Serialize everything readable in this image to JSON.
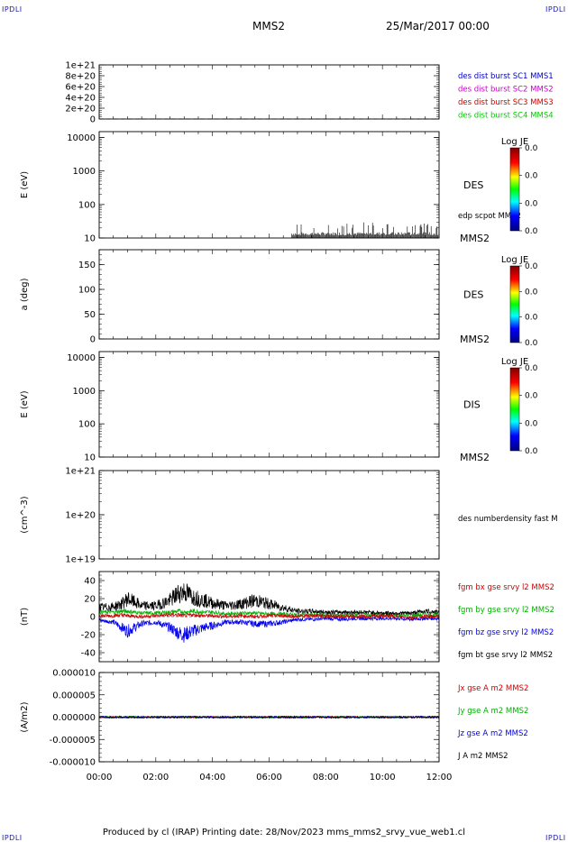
{
  "header": {
    "spacecraft": "MMS2",
    "date": "25/Mar/2017 00:00",
    "corner_label": "IPDLI"
  },
  "footer": {
    "text": "Produced by cl (IRAP)   Printing date: 28/Nov/2023   mms_mms2_srvy_vue_web1.cl"
  },
  "colors": {
    "mms1": "#0000cc",
    "mms2": "#cc00cc",
    "mms3": "#cc0000",
    "mms4": "#00cc00",
    "bx": "#cc0000",
    "by": "#00b000",
    "bz": "#0000ee",
    "bt": "#000000"
  },
  "chart_data": [
    {
      "id": "des_burst",
      "type": "line",
      "ylim": [
        0,
        1e+21
      ],
      "yticks": [
        0,
        2e+20,
        4e+20,
        6e+20,
        8e+20,
        1e+21
      ],
      "ytick_labels": [
        "0",
        "2e+20",
        "4e+20",
        "6e+20",
        "8e+20",
        "1e+21"
      ],
      "ylabel": "",
      "dashed_level": 0,
      "series": [
        {
          "name": "des dist burst SC1 MMS1",
          "color": "#0000cc",
          "values": []
        },
        {
          "name": "des dist burst SC2 MMS2",
          "color": "#cc00cc",
          "values": []
        },
        {
          "name": "des dist burst SC3 MMS3",
          "color": "#cc0000",
          "values": []
        },
        {
          "name": "des dist burst SC4 MMS4",
          "color": "#00cc00",
          "values": []
        }
      ]
    },
    {
      "id": "des_energy",
      "type": "heatmap",
      "ylabel": "E (eV)",
      "yscale": "log",
      "ylim": [
        10,
        15000
      ],
      "yticks": [
        10,
        100,
        1000,
        10000
      ],
      "ytick_labels": [
        "10",
        "100",
        "1000",
        "10000"
      ],
      "instrument": "DES",
      "spacecraft": "MMS2",
      "overlay_label": "edp scpot MMS2",
      "colorbar": {
        "title": "Log JE",
        "ticks": [
          "0.0",
          "0.0",
          "0.0",
          "0.0"
        ]
      }
    },
    {
      "id": "des_pitch",
      "type": "heatmap",
      "ylabel": "a (deg)",
      "ylim": [
        0,
        180
      ],
      "yticks": [
        0,
        50,
        100,
        150
      ],
      "ytick_labels": [
        "0",
        "50",
        "100",
        "150"
      ],
      "instrument": "DES",
      "spacecraft": "MMS2",
      "colorbar": {
        "title": "Log JE",
        "ticks": [
          "0.0",
          "0.0",
          "0.0",
          "0.0"
        ]
      }
    },
    {
      "id": "dis_energy",
      "type": "heatmap",
      "ylabel": "E (eV)",
      "yscale": "log",
      "ylim": [
        10,
        15000
      ],
      "yticks": [
        10,
        100,
        1000,
        10000
      ],
      "ytick_labels": [
        "10",
        "100",
        "1000",
        "10000"
      ],
      "instrument": "DIS",
      "spacecraft": "MMS2",
      "colorbar": {
        "title": "Log JE",
        "ticks": [
          "0.0",
          "0.0",
          "0.0",
          "0.0"
        ]
      }
    },
    {
      "id": "density",
      "type": "line",
      "ylabel": "(cm^-3)",
      "yscale": "log",
      "ylim": [
        1e+19,
        1e+21
      ],
      "yticks": [
        1e+19,
        1e+20,
        1e+21
      ],
      "ytick_labels": [
        "1e+19",
        "1e+20",
        "1e+21"
      ],
      "series": [
        {
          "name": "des numberdensity fast M",
          "color": "#000000",
          "values": []
        }
      ]
    },
    {
      "id": "fgm",
      "type": "line",
      "ylabel": "(nT)",
      "ylim": [
        -50,
        50
      ],
      "yticks": [
        -40,
        -20,
        0,
        20,
        40
      ],
      "ytick_labels": [
        "-40",
        "-20",
        "0",
        "20",
        "40"
      ],
      "x": [
        0,
        0.5,
        0.8,
        1.0,
        1.5,
        2.0,
        2.5,
        2.8,
        3.0,
        3.3,
        3.7,
        4.0,
        4.5,
        5.0,
        5.5,
        6.0,
        6.5,
        7.0,
        7.5,
        8.0,
        8.5,
        9.0,
        9.5,
        10.0,
        10.5,
        11.0,
        11.5,
        12.0
      ],
      "series": [
        {
          "name": "fgm bx gse srvy l2 MMS2",
          "color": "#cc0000",
          "values": [
            1,
            1,
            2,
            1,
            0,
            1,
            2,
            2,
            1,
            2,
            1,
            1,
            0,
            1,
            0,
            1,
            1,
            0,
            1,
            1,
            0,
            0,
            0,
            1,
            0,
            -1,
            0,
            0
          ]
        },
        {
          "name": "fgm by gse srvy l2 MMS2",
          "color": "#00b000",
          "values": [
            5,
            5,
            6,
            6,
            4,
            4,
            5,
            6,
            5,
            6,
            5,
            5,
            3,
            4,
            4,
            3,
            3,
            2,
            2,
            2,
            2,
            2,
            2,
            2,
            2,
            2,
            2,
            2
          ]
        },
        {
          "name": "fgm bz gse srvy l2 MMS2",
          "color": "#0000ee",
          "values": [
            -4,
            -6,
            -12,
            -16,
            -8,
            -6,
            -12,
            -18,
            -20,
            -16,
            -12,
            -10,
            -6,
            -6,
            -8,
            -8,
            -6,
            -3,
            -3,
            -2,
            -3,
            -2,
            -2,
            -2,
            -2,
            -3,
            -2,
            -2
          ]
        },
        {
          "name": "fgm bt gse srvy l2 MMS2",
          "color": "#000000",
          "values": [
            10,
            11,
            14,
            20,
            12,
            12,
            18,
            26,
            28,
            22,
            18,
            15,
            12,
            14,
            18,
            14,
            10,
            6,
            6,
            5,
            5,
            5,
            5,
            4,
            4,
            4,
            6,
            5
          ]
        }
      ]
    },
    {
      "id": "current",
      "type": "line",
      "ylabel": "(A/m2)",
      "ylim": [
        -1e-05,
        1e-05
      ],
      "yticks": [
        -1e-05,
        -5e-06,
        0,
        5e-06,
        1e-05
      ],
      "ytick_labels": [
        "-0.000010",
        "-0.000005",
        "0.000000",
        "0.000005",
        "0.000010"
      ],
      "x": [
        0,
        1,
        2,
        3,
        4,
        5,
        6,
        7,
        8,
        9,
        10,
        11,
        12
      ],
      "series": [
        {
          "name": "Jx gse A m2 MMS2",
          "color": "#cc0000",
          "values": [
            0,
            0,
            0,
            0,
            0,
            0,
            0,
            0,
            0,
            0,
            0,
            0,
            0
          ]
        },
        {
          "name": "Jy gse A m2 MMS2",
          "color": "#00b000",
          "values": [
            0,
            0,
            0,
            0,
            0,
            0,
            0,
            0,
            0,
            0,
            0,
            0,
            0
          ]
        },
        {
          "name": "Jz gse A m2 MMS2",
          "color": "#0000ee",
          "values": [
            0,
            0,
            0,
            0,
            0,
            0,
            0,
            0,
            0,
            0,
            0,
            0,
            0
          ]
        },
        {
          "name": "J A m2 MMS2",
          "color": "#000000",
          "values": [
            0,
            0,
            0,
            0,
            0,
            0,
            0,
            0,
            0,
            0,
            0,
            0,
            0
          ]
        }
      ]
    }
  ],
  "x_axis": {
    "range_hours": [
      0,
      12
    ],
    "tick_hours": [
      0,
      2,
      4,
      6,
      8,
      10,
      12
    ],
    "tick_labels": [
      "00:00",
      "02:00",
      "04:00",
      "06:00",
      "08:00",
      "10:00",
      "12:00"
    ]
  }
}
